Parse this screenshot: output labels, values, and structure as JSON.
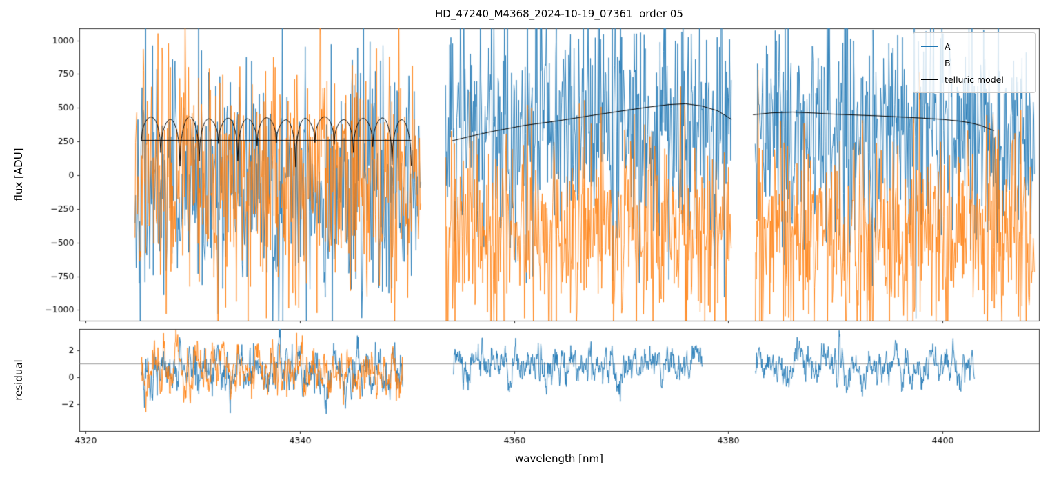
{
  "chart_data": {
    "type": "line",
    "title": "HD_47240_M4368_2024-10-19_07361  order 05",
    "xlabel": "wavelength [nm]",
    "xlim": [
      4319.4,
      4409.0
    ],
    "xticks": [
      4320,
      4340,
      4360,
      4380,
      4400
    ],
    "noise_seed": 42,
    "panels": [
      {
        "name": "flux",
        "ylabel": "flux [ADU]",
        "ylim": [
          -1080,
          1090
        ],
        "yticks": [
          1000,
          750,
          500,
          250,
          0,
          -250,
          -500,
          -750,
          -1000
        ],
        "legend": {
          "position": "upper right",
          "entries": [
            {
              "label": "A",
              "color": "#1f77b4"
            },
            {
              "label": "B",
              "color": "#ff7f0e"
            },
            {
              "label": "telluric model",
              "color": "#000000"
            }
          ]
        },
        "segments": [
          {
            "x0": 4324.6,
            "x1": 4351.3,
            "A": {
              "mean": -60,
              "std": 430
            },
            "B": {
              "mean": -20,
              "std": 430
            }
          },
          {
            "x0": 4353.6,
            "x1": 4380.3,
            "A": {
              "mean": 330,
              "std": 430
            },
            "B": {
              "mean": -430,
              "std": 360
            }
          },
          {
            "x0": 4382.5,
            "x1": 4408.6,
            "A": {
              "mean": 330,
              "std": 430
            },
            "B": {
              "mean": -430,
              "std": 360
            }
          }
        ],
        "telluric": {
          "flat": {
            "x0": 4325.2,
            "x1": 4350.4,
            "level": 258
          },
          "comb": {
            "x0": 4325.2,
            "x1": 4350.4,
            "top": 420,
            "base": 255,
            "period": 1.8,
            "dip_min": 60
          },
          "curves": [
            [
              [
                4354.2,
                255
              ],
              [
                4356,
                290
              ],
              [
                4358,
                325
              ],
              [
                4361,
                370
              ],
              [
                4364,
                402
              ],
              [
                4367,
                440
              ],
              [
                4370,
                476
              ],
              [
                4372.5,
                505
              ],
              [
                4374.5,
                524
              ],
              [
                4376,
                530
              ],
              [
                4377.5,
                514
              ],
              [
                4379,
                478
              ],
              [
                4380.3,
                414
              ]
            ],
            [
              [
                4382.3,
                448
              ],
              [
                4384,
                462
              ],
              [
                4386,
                468
              ],
              [
                4388,
                461
              ],
              [
                4390,
                452
              ],
              [
                4392,
                446
              ],
              [
                4394,
                440
              ],
              [
                4396,
                432
              ],
              [
                4398,
                424
              ],
              [
                4400,
                414
              ],
              [
                4401.5,
                402
              ],
              [
                4402.5,
                390
              ],
              [
                4403.5,
                371
              ],
              [
                4404.3,
                346
              ],
              [
                4404.8,
                330
              ]
            ]
          ]
        }
      },
      {
        "name": "residual",
        "ylabel": "residual",
        "ylim": [
          -4.0,
          3.6
        ],
        "yticks": [
          2,
          0,
          -2
        ],
        "hline": 1.0,
        "colors": {
          "A": "#1f77b4",
          "B": "#ff7f0e",
          "hline": "#7f7f7f"
        },
        "segments": [
          {
            "x0": 4325.2,
            "x1": 4349.6,
            "series": [
              "A",
              "B"
            ],
            "mean": 0.5,
            "std": 0.95
          },
          {
            "x0": 4354.3,
            "x1": 4377.6,
            "series": [
              "A"
            ],
            "mean": 0.8,
            "std": 0.75
          },
          {
            "x0": 4382.5,
            "x1": 4403.0,
            "series": [
              "A"
            ],
            "mean": 0.8,
            "std": 0.75
          }
        ]
      }
    ]
  }
}
